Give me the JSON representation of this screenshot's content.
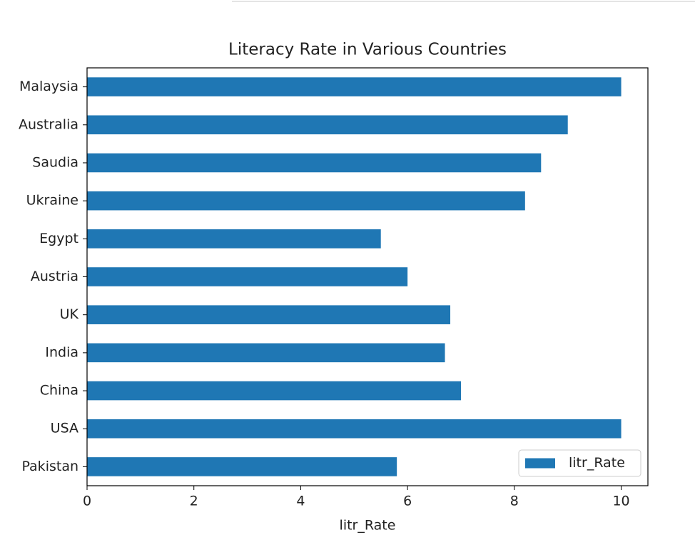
{
  "chart_data": {
    "type": "barh",
    "title": "Literacy Rate in Various Countries",
    "xlabel": "litr_Rate",
    "categories": [
      "Pakistan",
      "USA",
      "China",
      "India",
      "UK",
      "Austria",
      "Egypt",
      "Ukraine",
      "Saudia",
      "Australia",
      "Malaysia"
    ],
    "series": [
      {
        "name": "litr_Rate",
        "color": "#1f77b4",
        "values": [
          5.8,
          10,
          7,
          6.7,
          6.8,
          6,
          5.5,
          8.2,
          8.5,
          9,
          10
        ]
      }
    ],
    "xlim": [
      0,
      10.5
    ],
    "xticks": [
      0,
      2,
      4,
      6,
      8,
      10
    ],
    "legend": "lower right"
  }
}
